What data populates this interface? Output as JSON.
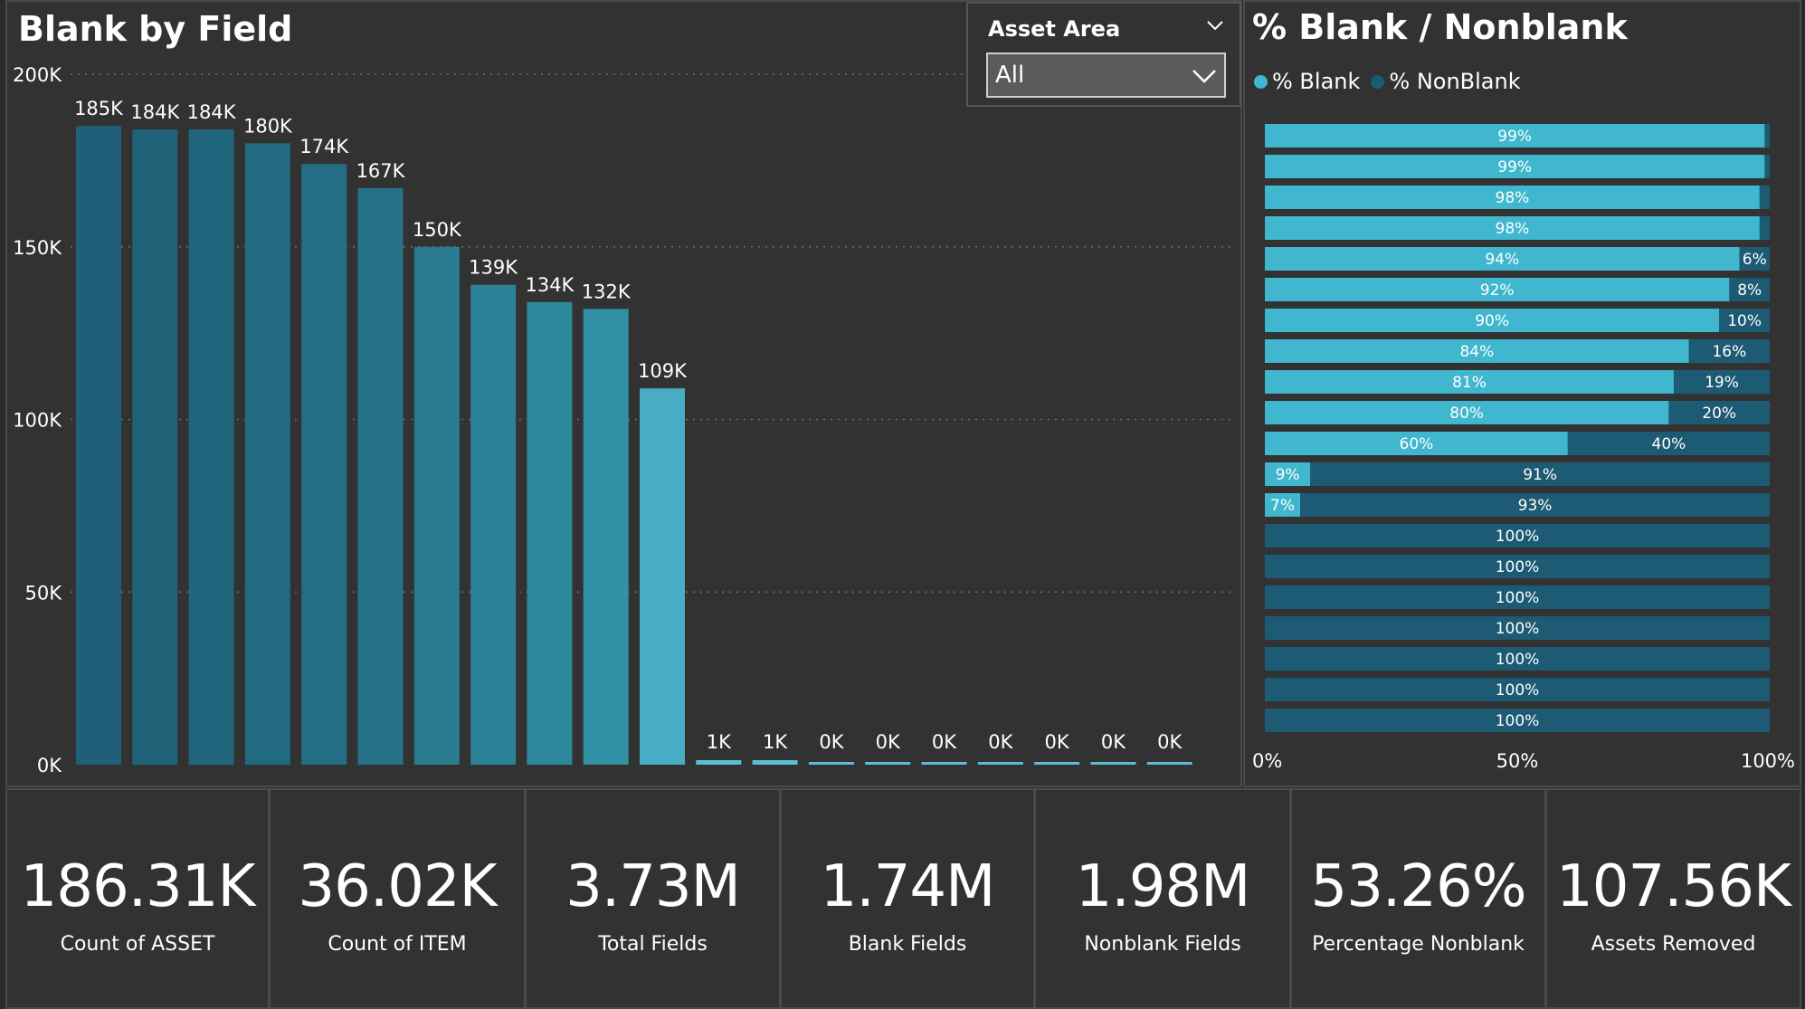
{
  "bar_chart": {
    "title": "Blank by Field",
    "chart_data": {
      "type": "bar",
      "title": "Blank by Field",
      "ylim": [
        0,
        200000
      ],
      "y_ticks": [
        "0K",
        "50K",
        "100K",
        "150K",
        "200K"
      ],
      "y_tick_values": [
        0,
        50000,
        100000,
        150000,
        200000
      ],
      "grid": true,
      "values": [
        185000,
        184000,
        184000,
        180000,
        174000,
        167000,
        150000,
        139000,
        134000,
        132000,
        109000,
        1000,
        1000,
        0,
        0,
        0,
        0,
        0,
        0,
        0
      ],
      "data_labels": [
        "185K",
        "184K",
        "184K",
        "180K",
        "174K",
        "167K",
        "150K",
        "139K",
        "134K",
        "132K",
        "109K",
        "1K",
        "1K",
        "0K",
        "0K",
        "0K",
        "0K",
        "0K",
        "0K",
        "0K"
      ],
      "colors": [
        "#1f5f7a",
        "#206379",
        "#21667c",
        "#226a80",
        "#246e85",
        "#267389",
        "#297b8f",
        "#2b8196",
        "#2e889c",
        "#3190a5",
        "#48acc4",
        "#5bbfd4",
        "#5bbfd4",
        "#5bbfd4",
        "#5bbfd4",
        "#5bbfd4",
        "#5bbfd4",
        "#5bbfd4",
        "#5bbfd4",
        "#5bbfd4"
      ]
    }
  },
  "slicer": {
    "title": "Asset Area",
    "selected": "All"
  },
  "pct_chart": {
    "title": "% Blank / Nonblank",
    "legend": [
      {
        "label": "% Blank",
        "color": "#41b6cf"
      },
      {
        "label": "% NonBlank",
        "color": "#1d5a73"
      }
    ],
    "chart_data": {
      "type": "bar",
      "orientation": "horizontal",
      "stacked": "100%",
      "title": "% Blank / Nonblank",
      "xlim": [
        0,
        100
      ],
      "x_ticks": [
        "0%",
        "50%",
        "100%"
      ],
      "x_tick_values": [
        0,
        50,
        100
      ],
      "series": [
        {
          "name": "% Blank",
          "values": [
            99,
            99,
            98,
            98,
            94,
            92,
            90,
            84,
            81,
            80,
            60,
            9,
            7,
            0,
            0,
            0,
            0,
            0,
            0,
            0
          ],
          "labels": [
            "99%",
            "99%",
            "98%",
            "98%",
            "94%",
            "92%",
            "90%",
            "84%",
            "81%",
            "80%",
            "60%",
            "9%",
            "7%",
            "",
            "",
            "",
            "",
            "",
            "",
            ""
          ]
        },
        {
          "name": "% NonBlank",
          "values": [
            1,
            1,
            2,
            2,
            6,
            8,
            10,
            16,
            19,
            20,
            40,
            91,
            93,
            100,
            100,
            100,
            100,
            100,
            100,
            100
          ],
          "labels": [
            "",
            "",
            "",
            "",
            "6%",
            "8%",
            "10%",
            "16%",
            "19%",
            "20%",
            "40%",
            "91%",
            "93%",
            "100%",
            "100%",
            "100%",
            "100%",
            "100%",
            "100%",
            "100%"
          ]
        }
      ],
      "colors": {
        "blank": "#41b6cf",
        "nonblank": "#1d5a73"
      }
    }
  },
  "kpis": [
    {
      "value": "186.31K",
      "label": "Count of ASSET"
    },
    {
      "value": "36.02K",
      "label": "Count of ITEM"
    },
    {
      "value": "3.73M",
      "label": "Total Fields"
    },
    {
      "value": "1.74M",
      "label": "Blank Fields"
    },
    {
      "value": "1.98M",
      "label": "Nonblank Fields"
    },
    {
      "value": "53.26%",
      "label": "Percentage Nonblank"
    },
    {
      "value": "107.56K",
      "label": "Assets Removed"
    }
  ],
  "icons": {
    "slicer_header": "chevron-down-icon",
    "slicer_select": "chevron-down-icon"
  }
}
